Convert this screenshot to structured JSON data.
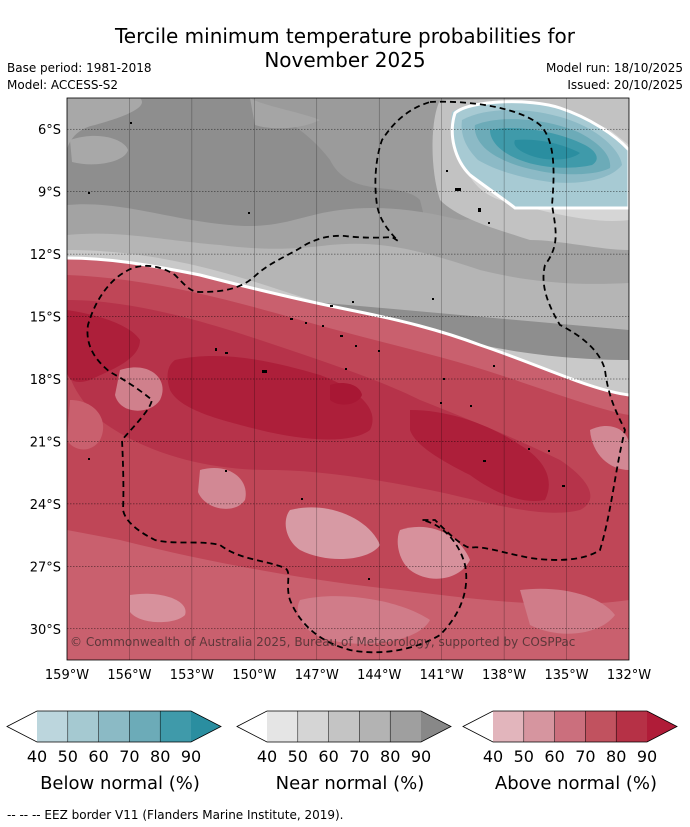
{
  "header": {
    "title_line1": "Tercile minimum temperature probabilities for",
    "title_line2": "November 2025",
    "base_period": "Base period: 1981-2018",
    "model": "Model: ACCESS-S2",
    "model_run": "Model run: 18/10/2025",
    "issued": "Issued: 20/10/2025"
  },
  "map": {
    "lat_labels": [
      "6°S",
      "9°S",
      "12°S",
      "15°S",
      "18°S",
      "21°S",
      "24°S",
      "27°S",
      "30°S"
    ],
    "lon_labels": [
      "159°W",
      "156°W",
      "153°W",
      "150°W",
      "147°W",
      "144°W",
      "141°W",
      "138°W",
      "135°W",
      "132°W"
    ],
    "lat_values": [
      -6,
      -9,
      -12,
      -15,
      -18,
      -21,
      -24,
      -27,
      -30
    ],
    "lon_values": [
      -159,
      -156,
      -153,
      -150,
      -147,
      -144,
      -141,
      -138,
      -135,
      -132
    ],
    "extent": {
      "lon_min": -159,
      "lon_max": -132,
      "lat_min": -31.5,
      "lat_max": -4.5
    },
    "copyright": "© Commonwealth of Australia 2025, Bureau of Meteorology, supported by COSPPac"
  },
  "colorbars": [
    {
      "name": "below-normal",
      "title": "Below normal (%)",
      "ticks": [
        "40",
        "50",
        "60",
        "70",
        "80",
        "90"
      ],
      "colors": [
        "#ffffff",
        "#bcd6dd",
        "#a5c9d1",
        "#8bbac5",
        "#6cabb8",
        "#3f9aaa",
        "#2a8ea0"
      ]
    },
    {
      "name": "near-normal",
      "title": "Near normal (%)",
      "ticks": [
        "40",
        "50",
        "60",
        "70",
        "80",
        "90"
      ],
      "colors": [
        "#ffffff",
        "#e5e5e5",
        "#d5d5d5",
        "#c4c4c4",
        "#b3b3b3",
        "#9f9f9f",
        "#888888"
      ]
    },
    {
      "name": "above-normal",
      "title": "Above normal (%)",
      "ticks": [
        "40",
        "50",
        "60",
        "70",
        "80",
        "90"
      ],
      "colors": [
        "#ffffff",
        "#e2b5bc",
        "#d6959f",
        "#cb6f7d",
        "#c1525f",
        "#b63146",
        "#b01c38"
      ]
    }
  ],
  "footnote": "--  --  -- EEZ border V11 (Flanders Marine Institute, 2019)."
}
